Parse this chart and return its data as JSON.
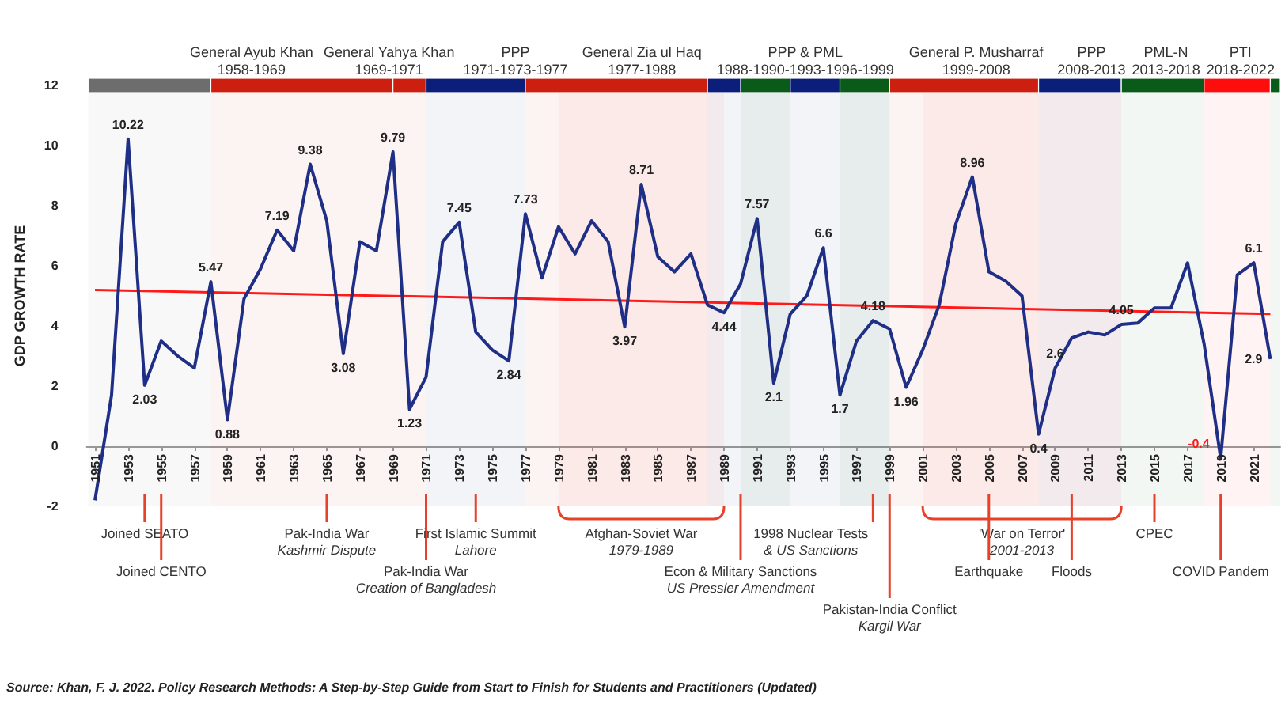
{
  "chart_data": {
    "type": "line",
    "ylabel": "GDP GROWTH RATE",
    "marker": "none",
    "x": [
      1951,
      1952,
      1953,
      1954,
      1955,
      1956,
      1957,
      1958,
      1959,
      1960,
      1961,
      1962,
      1963,
      1964,
      1965,
      1966,
      1967,
      1968,
      1969,
      1970,
      1971,
      1972,
      1973,
      1974,
      1975,
      1976,
      1977,
      1978,
      1979,
      1980,
      1981,
      1982,
      1983,
      1984,
      1985,
      1986,
      1987,
      1988,
      1989,
      1990,
      1991,
      1992,
      1993,
      1994,
      1995,
      1996,
      1997,
      1998,
      1999,
      2000,
      2001,
      2002,
      2003,
      2004,
      2005,
      2006,
      2007,
      2008,
      2009,
      2010,
      2011,
      2012,
      2013,
      2014,
      2015,
      2016,
      2017,
      2018,
      2019,
      2020,
      2021,
      2022
    ],
    "series": [
      {
        "color": "#1f2f86",
        "values": [
          -1.8,
          1.7,
          10.22,
          2.03,
          3.5,
          3.0,
          2.6,
          5.47,
          0.88,
          4.9,
          5.9,
          7.19,
          6.5,
          9.38,
          7.5,
          3.08,
          6.8,
          6.5,
          9.79,
          1.23,
          2.3,
          6.8,
          7.45,
          3.8,
          3.2,
          2.84,
          7.73,
          5.6,
          7.3,
          6.4,
          7.5,
          6.8,
          3.97,
          8.71,
          6.3,
          5.8,
          6.4,
          4.7,
          4.44,
          5.4,
          7.57,
          2.1,
          4.4,
          5.0,
          6.6,
          1.7,
          3.5,
          4.18,
          3.9,
          1.96,
          3.2,
          4.7,
          7.4,
          8.96,
          5.8,
          5.5,
          5.0,
          0.4,
          2.6,
          3.6,
          3.8,
          3.7,
          4.05,
          4.1,
          4.6,
          4.6,
          6.1,
          3.4,
          -0.4,
          5.7,
          6.1,
          2.9
        ],
        "value_labels": [
          null,
          null,
          "10.22",
          "2.03",
          null,
          null,
          null,
          "5.47",
          "0.88",
          null,
          null,
          "7.19",
          null,
          "9.38",
          null,
          "3.08",
          null,
          null,
          "9.79",
          "1.23",
          null,
          null,
          "7.45",
          null,
          null,
          "2.84",
          "7.73",
          null,
          null,
          null,
          null,
          null,
          "3.97",
          "8.71",
          null,
          null,
          null,
          null,
          "4.44",
          null,
          "7.57",
          "2.1",
          null,
          null,
          "6.6",
          "1.7",
          null,
          "4.18",
          null,
          "1.96",
          null,
          null,
          null,
          "8.96",
          null,
          null,
          null,
          "0.4",
          "2.6",
          null,
          null,
          null,
          "4.05",
          null,
          null,
          null,
          null,
          null,
          "-0.4",
          null,
          "6.1",
          "2.9"
        ]
      },
      {
        "type": "line",
        "color": "#ff1a1a",
        "x": [
          1951,
          2022
        ],
        "values": [
          5.2,
          4.4
        ]
      }
    ],
    "xlim": [
      1950.5,
      2022.6
    ],
    "xticks": [
      1951,
      1953,
      1955,
      1957,
      1959,
      1961,
      1963,
      1965,
      1967,
      1969,
      1971,
      1973,
      1975,
      1977,
      1979,
      1981,
      1983,
      1985,
      1987,
      1989,
      1991,
      1993,
      1995,
      1997,
      1999,
      2001,
      2003,
      2005,
      2007,
      2009,
      2011,
      2013,
      2015,
      2017,
      2019,
      2021
    ],
    "ylim": [
      -2,
      12
    ],
    "yticks": [
      -2,
      0,
      2,
      4,
      6,
      8,
      10,
      12
    ],
    "bands": [
      {
        "axis": "x",
        "from": 1950.6,
        "to": 1958,
        "color": "#6d6d6d"
      },
      {
        "axis": "x",
        "from": 1958,
        "to": 1969,
        "color": "#cc1f0f",
        "label": "General Ayub Khan\n1958-1969"
      },
      {
        "axis": "x",
        "from": 1969,
        "to": 1971,
        "color": "#cc1f0f",
        "label": "General Yahya Khan\n1969-1971"
      },
      {
        "axis": "x",
        "from": 1971,
        "to": 1977,
        "color": "#0b1f7a",
        "label": "PPP\n1971-1973-1977"
      },
      {
        "axis": "x",
        "from": 1977,
        "to": 1988,
        "color": "#cc1f0f",
        "label": "General Zia ul Haq\n1977-1988"
      },
      {
        "axis": "x",
        "from": 1988,
        "to": 1999,
        "color": "#0b1f7a",
        "label": "PPP & PML\n1988-1990-1993-1996-1999"
      },
      {
        "axis": "x",
        "from": 1990,
        "to": 1993,
        "color": "#0a5a1a"
      },
      {
        "axis": "x",
        "from": 1996,
        "to": 1999,
        "color": "#0a5a1a"
      },
      {
        "axis": "x",
        "from": 1999,
        "to": 2008,
        "color": "#cc1f0f",
        "label": "General P. Musharraf\n1999-2008"
      },
      {
        "axis": "x",
        "from": 2008,
        "to": 2013,
        "color": "#0b1f7a",
        "label": "PPP\n2008-2013"
      },
      {
        "axis": "x",
        "from": 2013,
        "to": 2018,
        "color": "#0a5a1a",
        "label": "PML-N\n2013-2018"
      },
      {
        "axis": "x",
        "from": 2018,
        "to": 2022,
        "color": "#ff0d0d",
        "label": "PTI\n2018-2022"
      },
      {
        "axis": "x",
        "from": 2022,
        "to": 2022.6,
        "color": "#0a5a1a"
      },
      {
        "axis": "x",
        "from": 1979,
        "to": 1989,
        "label": "Afghan-Soviet War\n1979-1989"
      },
      {
        "axis": "x",
        "from": 2001,
        "to": 2013,
        "label": "'War on Terror'\n2001-2013"
      }
    ],
    "ref_lines": [
      {
        "axis": "x",
        "value": 1954,
        "label": "Joined SEATO",
        "color": "#e8412a"
      },
      {
        "axis": "x",
        "value": 1955,
        "label": "Joined CENTO",
        "color": "#e8412a"
      },
      {
        "axis": "x",
        "value": 1965,
        "label": "Pak-India War\nKashmir Dispute",
        "color": "#e8412a"
      },
      {
        "axis": "x",
        "value": 1971,
        "label": "Pak-India War\nCreation of Bangladesh",
        "color": "#e8412a"
      },
      {
        "axis": "x",
        "value": 1974,
        "label": "First Islamic Summit\nLahore",
        "color": "#e8412a"
      },
      {
        "axis": "x",
        "value": 1990,
        "label": "Econ & Military Sanctions\nUS Pressler Amendment",
        "color": "#e8412a"
      },
      {
        "axis": "x",
        "value": 1998,
        "label": "1998 Nuclear Tests\n& US Sanctions",
        "color": "#e8412a"
      },
      {
        "axis": "x",
        "value": 1999,
        "label": "Pakistan-India Conflict\nKargil War",
        "color": "#e8412a"
      },
      {
        "axis": "x",
        "value": 2005,
        "label": "Earthquake",
        "color": "#e8412a"
      },
      {
        "axis": "x",
        "value": 2010,
        "label": "Floods",
        "color": "#e8412a"
      },
      {
        "axis": "x",
        "value": 2015,
        "label": "CPEC",
        "color": "#e8412a"
      },
      {
        "axis": "x",
        "value": 2019,
        "label": "COVID Pandem",
        "color": "#e8412a"
      }
    ],
    "annotations": [
      "Source: Khan, F. J. 2022. Policy Research Methods: A Step-by-Step Guide from Start to Finish for Students and Practitioners (Updated)"
    ]
  }
}
